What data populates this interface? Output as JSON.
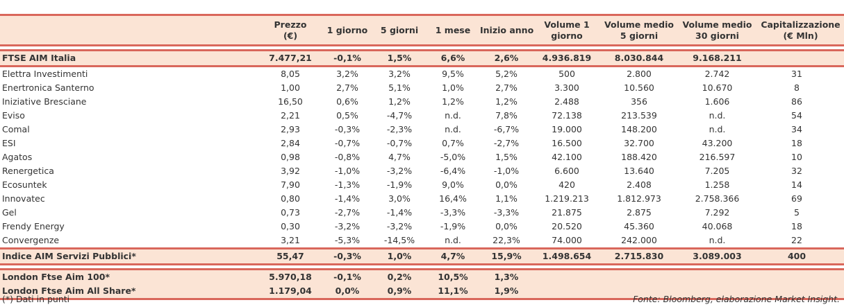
{
  "headers": [
    "",
    "Prezzo\n(€)",
    "1 giorno",
    "5 giorni",
    "1 mese",
    "Inizio anno",
    "Volume 1\ngiorno",
    "Volume medio\n5 giorni",
    "Volume medio\n30 giorni",
    "Capitalizzazione\n(€ Mln)"
  ],
  "index_row": [
    "FTSE AIM Italia",
    "7.477,21",
    "-0,1%",
    "1,5%",
    "6,6%",
    "2,6%",
    "4.936.819",
    "8.030.844",
    "9.168.211",
    ""
  ],
  "rows": [
    [
      "Elettra Investimenti",
      "8,05",
      "3,2%",
      "3,2%",
      "9,5%",
      "5,2%",
      "500",
      "2.800",
      "2.742",
      "31"
    ],
    [
      "Enertronica Santerno",
      "1,00",
      "2,7%",
      "5,1%",
      "1,0%",
      "2,7%",
      "3.300",
      "10.560",
      "10.670",
      "8"
    ],
    [
      "Iniziative Bresciane",
      "16,50",
      "0,6%",
      "1,2%",
      "1,2%",
      "1,2%",
      "2.488",
      "356",
      "1.606",
      "86"
    ],
    [
      "Eviso",
      "2,21",
      "0,5%",
      "-4,7%",
      "n.d.",
      "7,8%",
      "72.138",
      "213.539",
      "n.d.",
      "54"
    ],
    [
      "Comal",
      "2,93",
      "-0,3%",
      "-2,3%",
      "n.d.",
      "-6,7%",
      "19.000",
      "148.200",
      "n.d.",
      "34"
    ],
    [
      "ESI",
      "2,84",
      "-0,7%",
      "-0,7%",
      "0,7%",
      "-2,7%",
      "16.500",
      "32.700",
      "43.200",
      "18"
    ],
    [
      "Agatos",
      "0,98",
      "-0,8%",
      "4,7%",
      "-5,0%",
      "1,5%",
      "42.100",
      "188.420",
      "216.597",
      "10"
    ],
    [
      "Renergetica",
      "3,92",
      "-1,0%",
      "-3,2%",
      "-6,4%",
      "-1,0%",
      "6.600",
      "13.640",
      "7.205",
      "32"
    ],
    [
      "Ecosuntek",
      "7,90",
      "-1,3%",
      "-1,9%",
      "9,0%",
      "0,0%",
      "420",
      "2.408",
      "1.258",
      "14"
    ],
    [
      "Innovatec",
      "0,80",
      "-1,4%",
      "3,0%",
      "16,4%",
      "1,1%",
      "1.219.213",
      "1.812.973",
      "2.758.366",
      "69"
    ],
    [
      "Gel",
      "0,73",
      "-2,7%",
      "-1,4%",
      "-3,3%",
      "-3,3%",
      "21.875",
      "2.875",
      "7.292",
      "5"
    ],
    [
      "Frendy Energy",
      "0,30",
      "-3,2%",
      "-3,2%",
      "-1,9%",
      "0,0%",
      "20.520",
      "45.360",
      "40.068",
      "18"
    ],
    [
      "Convergenze",
      "3,21",
      "-5,3%",
      "-14,5%",
      "n.d.",
      "22,3%",
      "74.000",
      "242.000",
      "n.d.",
      "22"
    ]
  ],
  "sector_row": [
    "Indice AIM Servizi Pubblici*",
    "55,47",
    "-0,3%",
    "1,0%",
    "4,7%",
    "15,9%",
    "1.498.654",
    "2.715.830",
    "3.089.003",
    "400"
  ],
  "london_rows": [
    [
      "London Ftse Aim 100*",
      "5.970,18",
      "-0,1%",
      "0,2%",
      "10,5%",
      "1,3%",
      "",
      "",
      "",
      ""
    ],
    [
      "London Ftse Aim All Share*",
      "1.179,04",
      "0,0%",
      "0,9%",
      "11,1%",
      "1,9%",
      "",
      "",
      "",
      ""
    ]
  ],
  "footer": {
    "note": "(*) Dati in punti",
    "source": "Fonte: Bloomberg, elaborazione Market Insight."
  }
}
